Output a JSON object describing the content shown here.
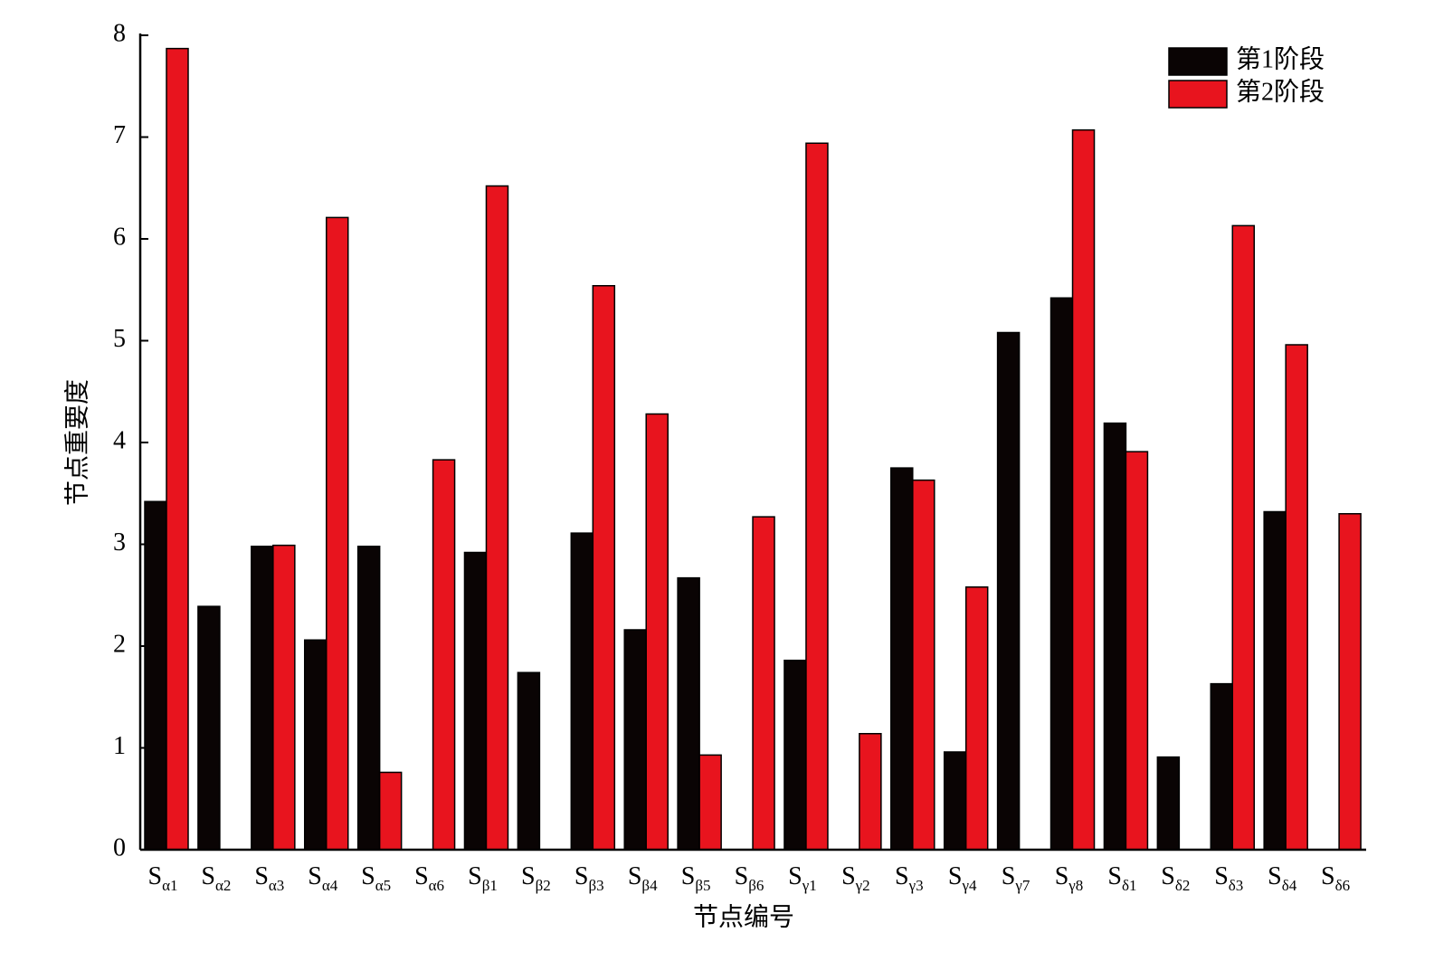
{
  "chart_data": {
    "type": "bar",
    "x_label": "节点编号",
    "y_label": "节点重要度",
    "categories": [
      "Sα1",
      "Sα2",
      "Sα3",
      "Sα4",
      "Sα5",
      "Sα6",
      "Sβ1",
      "Sβ2",
      "Sβ3",
      "Sβ4",
      "Sβ5",
      "Sβ6",
      "Sγ1",
      "Sγ2",
      "Sγ3",
      "Sγ4",
      "Sγ7",
      "Sγ8",
      "Sδ1",
      "Sδ2",
      "Sδ3",
      "Sδ4",
      "Sδ6"
    ],
    "series": [
      {
        "name": "第1阶段",
        "color": "#0a0404",
        "values": [
          3.42,
          2.39,
          2.98,
          2.06,
          2.98,
          0,
          2.92,
          1.74,
          3.11,
          2.16,
          2.67,
          0,
          1.86,
          0,
          3.75,
          0.96,
          5.08,
          5.42,
          4.19,
          0.91,
          1.63,
          3.32,
          0
        ]
      },
      {
        "name": "第2阶段",
        "color": "#e8141e",
        "values": [
          7.87,
          0,
          2.99,
          6.21,
          0.76,
          3.83,
          6.52,
          0,
          5.54,
          4.28,
          0.93,
          3.27,
          6.94,
          1.14,
          3.63,
          2.58,
          0,
          7.07,
          3.91,
          0,
          6.13,
          4.96,
          3.3
        ]
      }
    ],
    "ylim": [
      0,
      8
    ],
    "yticks": [
      0,
      1,
      2,
      3,
      4,
      5,
      6,
      7,
      8
    ],
    "legend": "upper right"
  }
}
